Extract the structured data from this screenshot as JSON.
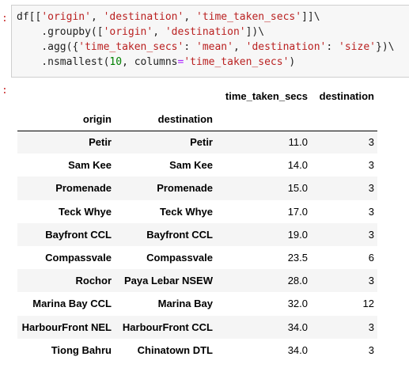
{
  "cell": {
    "in_prompt": ":",
    "out_prompt": ":",
    "code": {
      "l1a": "df[[",
      "l1b": "'origin'",
      "l1c": ", ",
      "l1d": "'destination'",
      "l1e": ", ",
      "l1f": "'time_taken_secs'",
      "l1g": "]]\\",
      "l2a": "    .groupby([",
      "l2b": "'origin'",
      "l2c": ", ",
      "l2d": "'destination'",
      "l2e": "])\\",
      "l3a": "    .agg({",
      "l3b": "'time_taken_secs'",
      "l3c": ": ",
      "l3d": "'mean'",
      "l3e": ", ",
      "l3f": "'destination'",
      "l3g": ": ",
      "l3h": "'size'",
      "l3i": "})\\",
      "l4a": "    .nsmallest(",
      "l4b": "10",
      "l4c": ", columns",
      "l4d": "=",
      "l4e": "'time_taken_secs'",
      "l4f": ")"
    }
  },
  "table": {
    "value_columns": [
      "time_taken_secs",
      "destination"
    ],
    "index_names": [
      "origin",
      "destination"
    ],
    "rows": [
      {
        "origin": "Petir",
        "destination": "Petir",
        "time_taken_secs": "11.0",
        "count": "3"
      },
      {
        "origin": "Sam Kee",
        "destination": "Sam Kee",
        "time_taken_secs": "14.0",
        "count": "3"
      },
      {
        "origin": "Promenade",
        "destination": "Promenade",
        "time_taken_secs": "15.0",
        "count": "3"
      },
      {
        "origin": "Teck Whye",
        "destination": "Teck Whye",
        "time_taken_secs": "17.0",
        "count": "3"
      },
      {
        "origin": "Bayfront CCL",
        "destination": "Bayfront CCL",
        "time_taken_secs": "19.0",
        "count": "3"
      },
      {
        "origin": "Compassvale",
        "destination": "Compassvale",
        "time_taken_secs": "23.5",
        "count": "6"
      },
      {
        "origin": "Rochor",
        "destination": "Paya Lebar NSEW",
        "time_taken_secs": "28.0",
        "count": "3"
      },
      {
        "origin": "Marina Bay CCL",
        "destination": "Marina Bay",
        "time_taken_secs": "32.0",
        "count": "12"
      },
      {
        "origin": "HarbourFront NEL",
        "destination": "HarbourFront CCL",
        "time_taken_secs": "34.0",
        "count": "3"
      },
      {
        "origin": "Tiong Bahru",
        "destination": "Chinatown DTL",
        "time_taken_secs": "34.0",
        "count": "3"
      }
    ]
  }
}
